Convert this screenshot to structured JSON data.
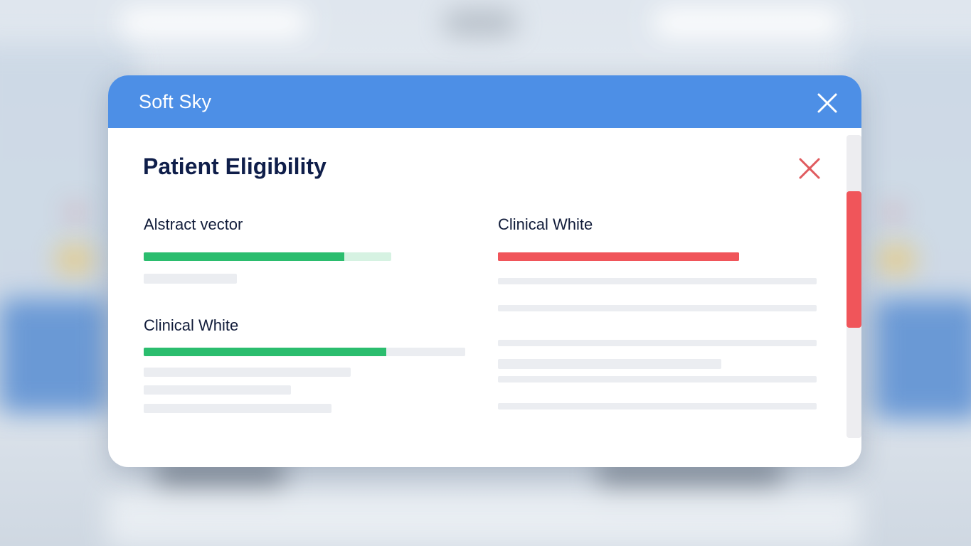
{
  "dialog": {
    "title": "Soft Sky",
    "accent_color": "#4d8fe6",
    "close_icon": "close-icon"
  },
  "panel": {
    "title": "Patient Eligibility",
    "close_icon": "close-icon",
    "close_color": "#e05a5e"
  },
  "left_column": {
    "items": [
      {
        "label": "Alstract vector",
        "progress_fraction": 0.81,
        "fill_color": "#2bbd6e",
        "track_color": "#d6f2e2"
      },
      {
        "label": "Clinical White",
        "progress_fraction": 0.755,
        "fill_color": "#2bbd6e",
        "track_color": "#ebedf1"
      }
    ]
  },
  "right_column": {
    "items": [
      {
        "label": "Clinical White",
        "progress_fraction": 1.0,
        "fill_color": "#f0555a",
        "track_color": "#f0555a"
      }
    ]
  },
  "scrollbar": {
    "thumb_color": "#f0555a"
  }
}
